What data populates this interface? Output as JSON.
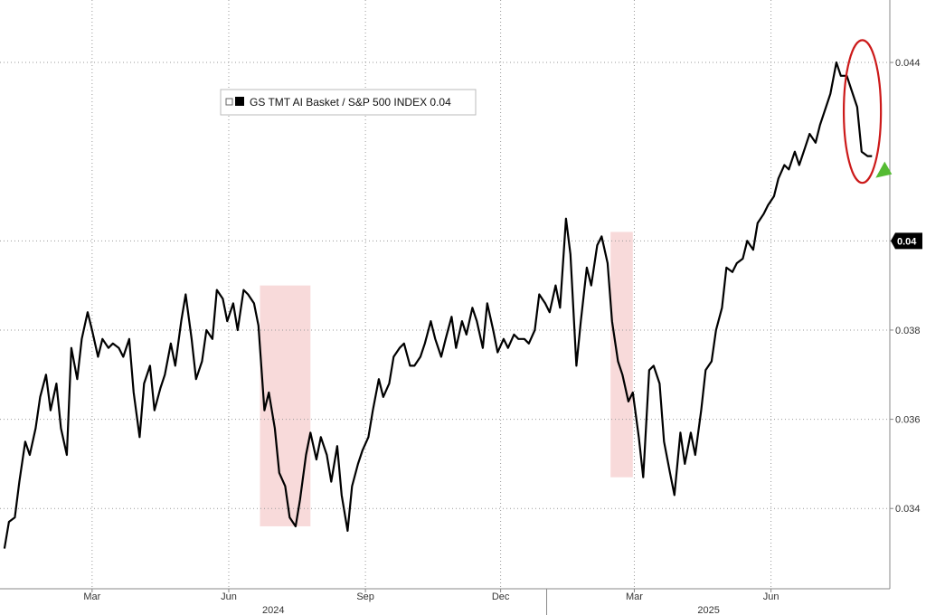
{
  "chart_data": {
    "type": "line",
    "series": [
      {
        "name": "GS TMT AI Basket / S&P 500 INDEX",
        "color": "#000000",
        "last_value": "0.04",
        "x": [
          "2024-01-02",
          "2024-01-05",
          "2024-01-09",
          "2024-01-12",
          "2024-01-16",
          "2024-01-19",
          "2024-01-23",
          "2024-01-26",
          "2024-01-30",
          "2024-02-02",
          "2024-02-06",
          "2024-02-09",
          "2024-02-13",
          "2024-02-16",
          "2024-02-20",
          "2024-02-23",
          "2024-02-27",
          "2024-03-01",
          "2024-03-05",
          "2024-03-08",
          "2024-03-12",
          "2024-03-15",
          "2024-03-19",
          "2024-03-22",
          "2024-03-26",
          "2024-03-29",
          "2024-04-02",
          "2024-04-05",
          "2024-04-09",
          "2024-04-12",
          "2024-04-16",
          "2024-04-19",
          "2024-04-23",
          "2024-04-26",
          "2024-04-30",
          "2024-05-03",
          "2024-05-07",
          "2024-05-10",
          "2024-05-14",
          "2024-05-17",
          "2024-05-21",
          "2024-05-24",
          "2024-05-28",
          "2024-05-31",
          "2024-06-04",
          "2024-06-07",
          "2024-06-11",
          "2024-06-14",
          "2024-06-18",
          "2024-06-21",
          "2024-06-25",
          "2024-06-28",
          "2024-07-02",
          "2024-07-05",
          "2024-07-09",
          "2024-07-12",
          "2024-07-16",
          "2024-07-19",
          "2024-07-23",
          "2024-07-26",
          "2024-07-30",
          "2024-08-02",
          "2024-08-06",
          "2024-08-09",
          "2024-08-13",
          "2024-08-16",
          "2024-08-20",
          "2024-08-23",
          "2024-08-27",
          "2024-08-30",
          "2024-09-03",
          "2024-09-06",
          "2024-09-10",
          "2024-09-13",
          "2024-09-17",
          "2024-09-20",
          "2024-09-24",
          "2024-09-27",
          "2024-10-01",
          "2024-10-04",
          "2024-10-08",
          "2024-10-11",
          "2024-10-15",
          "2024-10-18",
          "2024-10-22",
          "2024-10-25",
          "2024-10-29",
          "2024-11-01",
          "2024-11-05",
          "2024-11-08",
          "2024-11-12",
          "2024-11-15",
          "2024-11-19",
          "2024-11-22",
          "2024-11-26",
          "2024-11-29",
          "2024-12-03",
          "2024-12-06",
          "2024-12-10",
          "2024-12-13",
          "2024-12-17",
          "2024-12-20",
          "2024-12-24",
          "2024-12-27",
          "2024-12-31",
          "2025-01-03",
          "2025-01-07",
          "2025-01-10",
          "2025-01-14",
          "2025-01-17",
          "2025-01-21",
          "2025-01-24",
          "2025-01-28",
          "2025-01-31",
          "2025-02-04",
          "2025-02-07",
          "2025-02-11",
          "2025-02-14",
          "2025-02-18",
          "2025-02-21",
          "2025-02-25",
          "2025-02-28",
          "2025-03-04",
          "2025-03-07",
          "2025-03-11",
          "2025-03-14",
          "2025-03-18",
          "2025-03-21",
          "2025-03-25",
          "2025-03-28",
          "2025-04-01",
          "2025-04-04",
          "2025-04-08",
          "2025-04-11",
          "2025-04-15",
          "2025-04-18",
          "2025-04-22",
          "2025-04-25",
          "2025-04-29",
          "2025-05-02",
          "2025-05-06",
          "2025-05-09",
          "2025-05-13",
          "2025-05-16",
          "2025-05-20",
          "2025-05-23",
          "2025-05-27",
          "2025-05-30",
          "2025-06-03",
          "2025-06-06",
          "2025-06-10",
          "2025-06-13",
          "2025-06-17",
          "2025-06-20",
          "2025-06-24",
          "2025-06-27",
          "2025-07-01",
          "2025-07-04",
          "2025-07-08",
          "2025-07-11",
          "2025-07-15",
          "2025-07-18",
          "2025-07-22",
          "2025-07-25",
          "2025-07-29",
          "2025-08-01",
          "2025-08-05",
          "2025-08-08"
        ],
        "values": [
          0.0331,
          0.0337,
          0.0338,
          0.0346,
          0.0355,
          0.0352,
          0.0358,
          0.0365,
          0.037,
          0.0362,
          0.0368,
          0.0358,
          0.0352,
          0.0376,
          0.0369,
          0.0378,
          0.0384,
          0.038,
          0.0374,
          0.0378,
          0.0376,
          0.0377,
          0.0376,
          0.0374,
          0.0378,
          0.0366,
          0.0356,
          0.0368,
          0.0372,
          0.0362,
          0.0367,
          0.037,
          0.0377,
          0.0372,
          0.0382,
          0.0388,
          0.0378,
          0.0369,
          0.0373,
          0.038,
          0.0378,
          0.0389,
          0.0387,
          0.0382,
          0.0386,
          0.038,
          0.0389,
          0.0388,
          0.0386,
          0.0381,
          0.0362,
          0.0366,
          0.0358,
          0.0348,
          0.0345,
          0.0338,
          0.0336,
          0.0342,
          0.0352,
          0.0357,
          0.0351,
          0.0356,
          0.0352,
          0.0346,
          0.0354,
          0.0343,
          0.0335,
          0.0345,
          0.035,
          0.0353,
          0.0356,
          0.0362,
          0.0369,
          0.0365,
          0.0368,
          0.0374,
          0.0376,
          0.0377,
          0.0372,
          0.0372,
          0.0374,
          0.0377,
          0.0382,
          0.0378,
          0.0374,
          0.0378,
          0.0383,
          0.0376,
          0.0382,
          0.0379,
          0.0385,
          0.0382,
          0.0376,
          0.0386,
          0.038,
          0.0375,
          0.0378,
          0.0376,
          0.0379,
          0.0378,
          0.0378,
          0.0377,
          0.038,
          0.0388,
          0.0386,
          0.0384,
          0.039,
          0.0385,
          0.0405,
          0.0397,
          0.0372,
          0.0382,
          0.0394,
          0.039,
          0.0399,
          0.0401,
          0.0395,
          0.0382,
          0.0373,
          0.037,
          0.0364,
          0.0366,
          0.0356,
          0.0347,
          0.0371,
          0.0372,
          0.0368,
          0.0355,
          0.0348,
          0.0343,
          0.0357,
          0.035,
          0.0357,
          0.0352,
          0.0362,
          0.0371,
          0.0373,
          0.038,
          0.0385,
          0.0394,
          0.0393,
          0.0395,
          0.0396,
          0.04,
          0.0398,
          0.0404,
          0.0406,
          0.0408,
          0.041,
          0.0414,
          0.0417,
          0.0416,
          0.042,
          0.0417,
          0.0421,
          0.0424,
          0.0422,
          0.0426,
          0.043,
          0.0433,
          0.044,
          0.0437,
          0.0437,
          0.0434,
          0.043,
          0.042,
          0.0419,
          0.0419
        ]
      }
    ],
    "y_ticks": [
      "0.034",
      "0.036",
      "0.038",
      "0.040",
      "0.044"
    ],
    "ylim": [
      0.0322,
      0.0454
    ],
    "x_ticks": [
      {
        "label": "Mar",
        "date": "2024-03-01"
      },
      {
        "label": "Jun",
        "date": "2024-06-01"
      },
      {
        "label": "Sep",
        "date": "2024-09-01"
      },
      {
        "label": "Dec",
        "date": "2024-12-01"
      },
      {
        "label": "Mar",
        "date": "2025-03-01"
      },
      {
        "label": "Jun",
        "date": "2025-06-01"
      }
    ],
    "year_labels": [
      {
        "label": "2024",
        "date": "2024-07-01"
      },
      {
        "label": "2025",
        "date": "2025-04-20"
      }
    ],
    "year_divider_date": "2025-01-01",
    "xlim": [
      "2023-12-30",
      "2025-08-20"
    ],
    "grid": true,
    "legend_position": "top-left",
    "highlights": [
      {
        "x_start": "2024-06-22",
        "x_end": "2024-07-26",
        "y_min": 0.0336,
        "y_max": 0.039,
        "color": "#f7d4d4"
      },
      {
        "x_start": "2025-02-13",
        "x_end": "2025-02-28",
        "y_min": 0.0347,
        "y_max": 0.0402,
        "color": "#f7d4d4"
      }
    ],
    "annotation_circle": {
      "x_start": "2025-07-20",
      "x_end": "2025-08-14",
      "y_min": 0.0413,
      "y_max": 0.0445,
      "color": "#cc1a1a"
    },
    "last_marker_color": "#55bb33"
  },
  "legend": {
    "label": "GS TMT AI Basket / S&P 500 INDEX 0.04"
  }
}
